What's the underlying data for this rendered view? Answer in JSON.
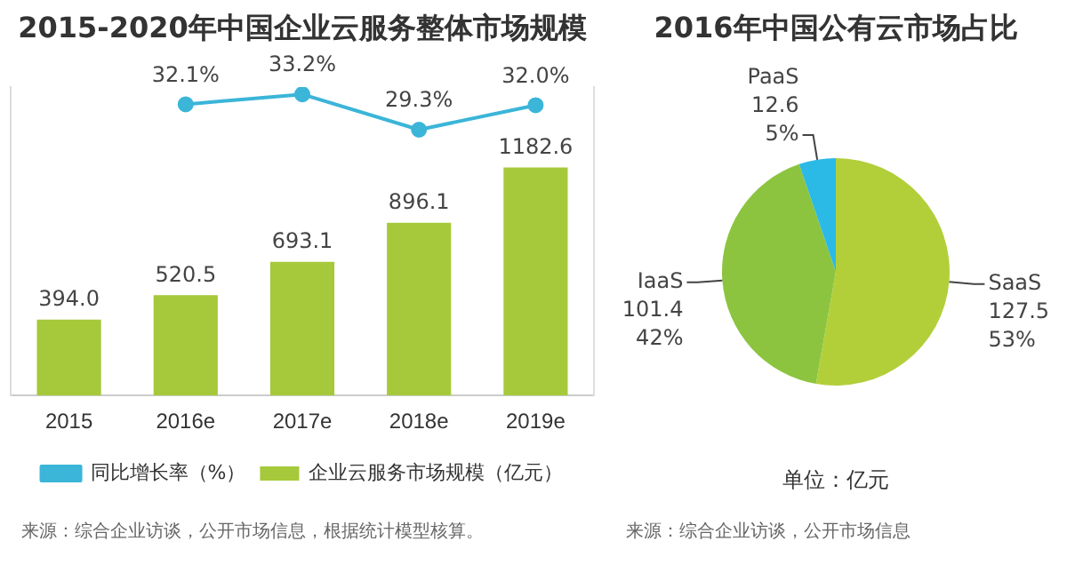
{
  "chart_data": [
    {
      "type": "bar",
      "title": "2015-2020年中国企业云服务整体市场规模",
      "categories": [
        "2015",
        "2016e",
        "2017e",
        "2018e",
        "2019e"
      ],
      "series": [
        {
          "name": "企业云服务市场规模（亿元）",
          "type": "bar",
          "color": "#a5c93a",
          "values": [
            394.0,
            520.5,
            693.1,
            896.1,
            1182.6
          ],
          "value_labels": [
            "394.0",
            "520.5",
            "693.1",
            "896.1",
            "1182.6"
          ]
        },
        {
          "name": "同比增长率（%）",
          "type": "line",
          "axis": "y2",
          "color": "#3bb5d8",
          "values": [
            null,
            32.1,
            33.2,
            29.3,
            32.0
          ],
          "value_labels": [
            null,
            "32.1%",
            "33.2%",
            "29.3%",
            "32.0%"
          ]
        }
      ],
      "ylim": [
        0,
        1600
      ],
      "y2lim": [
        0,
        34
      ],
      "tick_labels": "x",
      "grid": false,
      "legend": "bottom",
      "marker": "circle",
      "annotations": [
        "来源：综合企业访谈，公开市场信息，根据统计模型核算。"
      ]
    },
    {
      "type": "pie",
      "title": "2016年中国公有云市场占比",
      "categories": [
        "SaaS",
        "IaaS",
        "PaaS"
      ],
      "values": [
        127.5,
        101.4,
        12.6
      ],
      "colors": [
        "#b2cf3a",
        "#8cc43f",
        "#2bb9e6"
      ],
      "value_labels": [
        "127.5\n53%",
        "101.4\n42%",
        "12.6\n5%"
      ],
      "annotations": [
        "单位：亿元",
        "来源：综合企业访谈，公开市场信息"
      ]
    }
  ]
}
